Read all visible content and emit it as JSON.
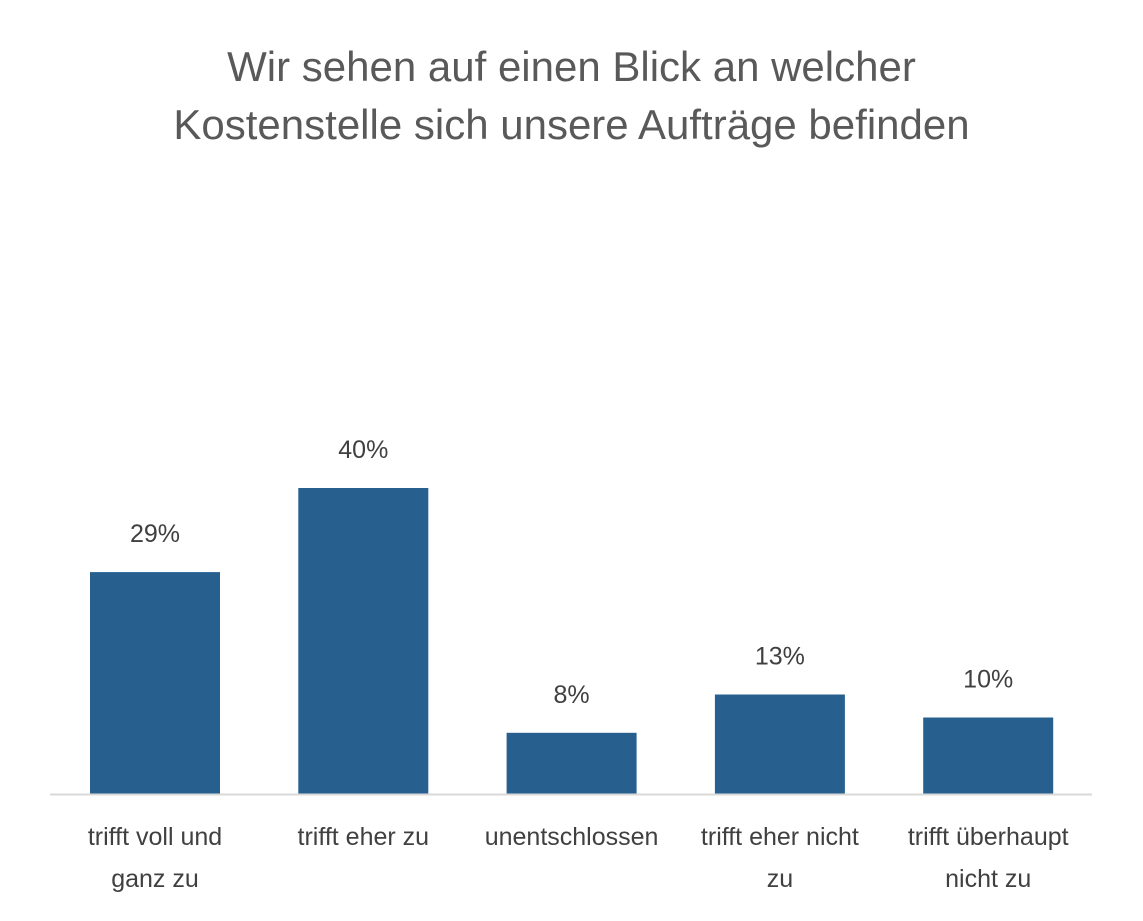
{
  "chart_data": {
    "type": "bar",
    "title_lines": [
      "Wir sehen auf einen Blick an welcher",
      "Kostenstelle sich unsere Aufträge befinden"
    ],
    "categories": [
      [
        "trifft voll und",
        "ganz zu"
      ],
      [
        "trifft eher zu"
      ],
      [
        "unentschlossen"
      ],
      [
        "trifft eher nicht",
        "zu"
      ],
      [
        "trifft überhaupt",
        "nicht zu"
      ]
    ],
    "values": [
      29,
      40,
      8,
      13,
      10
    ],
    "value_labels": [
      "29%",
      "40%",
      "8%",
      "13%",
      "10%"
    ],
    "value_unit": "%",
    "xlabel": "",
    "ylabel": "",
    "grid": false,
    "legend": "none",
    "bar_color": "#27608F",
    "axis_color": "#D9D9D9",
    "text_color": "#404040",
    "title_color": "#595959"
  }
}
